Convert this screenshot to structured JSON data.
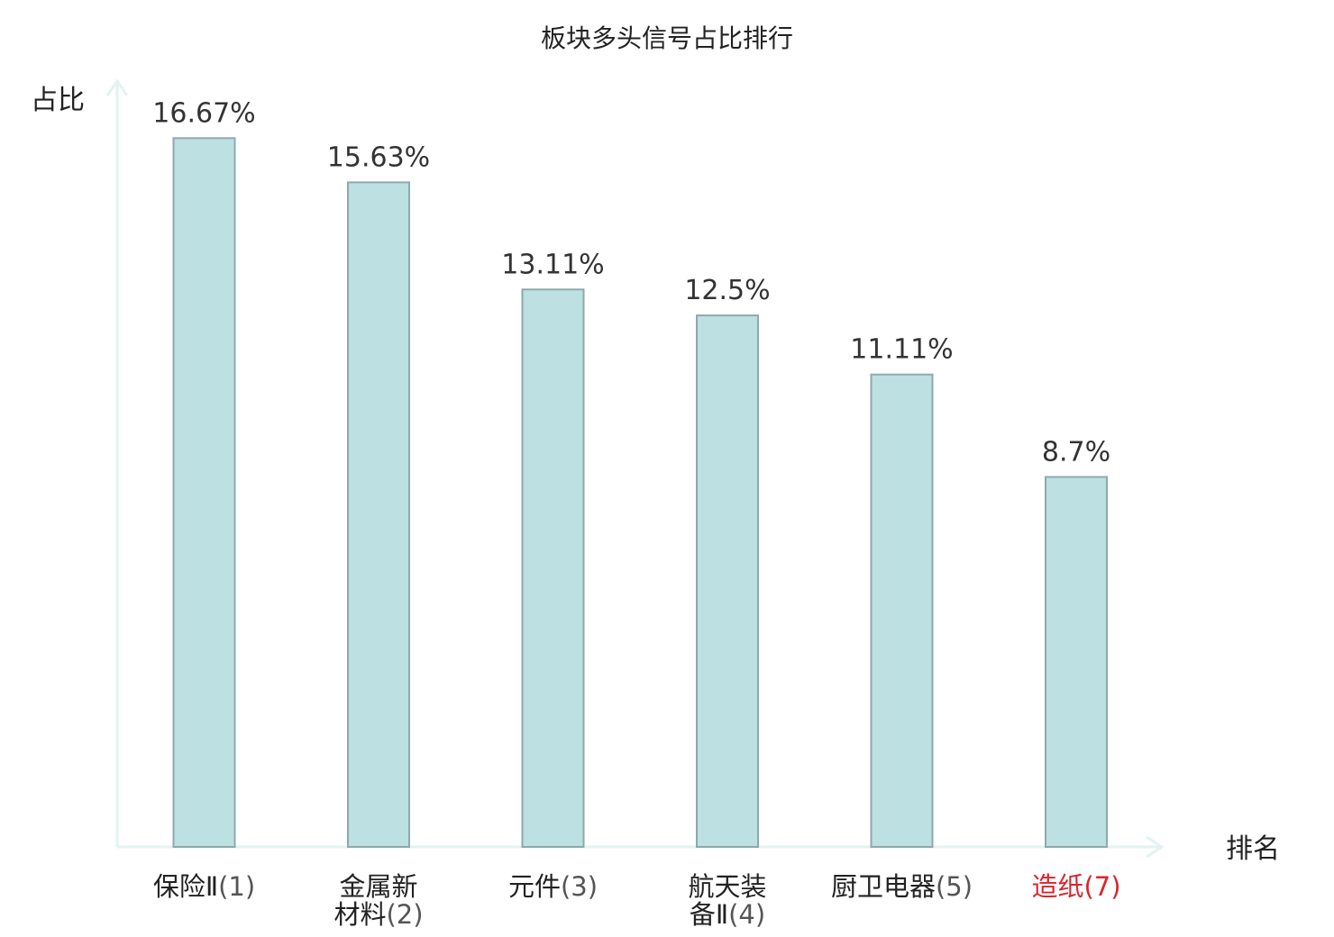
{
  "chart_data": {
    "type": "bar",
    "title": "板块多头信号占比排行",
    "ylabel": "占比",
    "xlabel": "排名",
    "categories": [
      "保险Ⅱ(1)",
      "金属新材料(2)",
      "元件(3)",
      "航天装备Ⅱ(4)",
      "厨卫电器(5)",
      "造纸(7)"
    ],
    "category_names": [
      "保险Ⅱ",
      "金属新材料",
      "元件",
      "航天装备Ⅱ",
      "厨卫电器",
      "造纸"
    ],
    "category_ranks": [
      "(1)",
      "(2)",
      "(3)",
      "(4)",
      "(5)",
      "(7)"
    ],
    "values": [
      16.67,
      15.63,
      13.11,
      12.5,
      11.11,
      8.7
    ],
    "value_labels": [
      "16.67%",
      "15.63%",
      "13.11%",
      "12.5%",
      "11.11%",
      "8.7%"
    ],
    "highlighted_category": "造纸(7)",
    "ylim": [
      0,
      18
    ],
    "grid": false,
    "legend": "none",
    "colors": {
      "bar_fill": "#bde0e2",
      "bar_stroke": "#8fa9aa",
      "axis": "#e2f3f1",
      "highlight_label": "#d9262b",
      "text": "#222222"
    }
  }
}
